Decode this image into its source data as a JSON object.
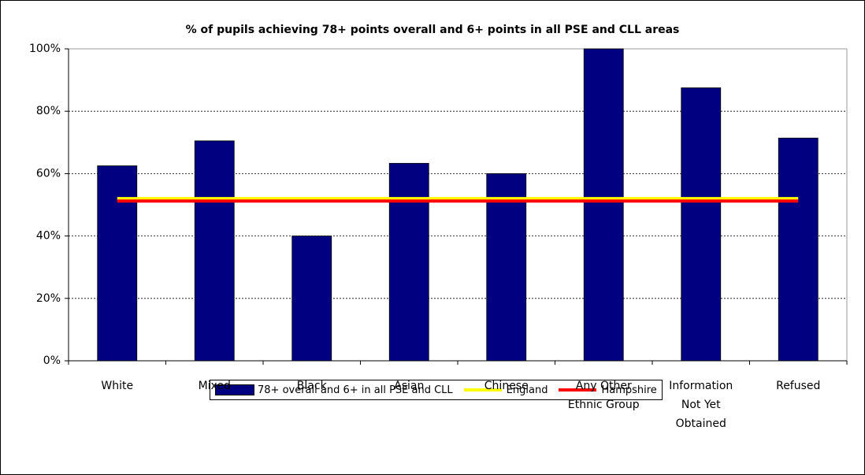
{
  "chart_data": {
    "type": "bar",
    "title": "% of pupils achieving 78+ points overall and 6+ points in all PSE and CLL areas",
    "categories": [
      "White",
      "Mixed",
      "Black",
      "Asian",
      "Chinese",
      "Any Other Ethnic Group",
      "Information Not Yet Obtained",
      "Refused"
    ],
    "series": [
      {
        "name": "78+ overall and 6+ in all PSE and CLL",
        "type": "bar",
        "color": "#000080",
        "values": [
          62.5,
          70.5,
          40,
          63.3,
          60,
          100,
          87.5,
          71.4
        ]
      },
      {
        "name": "England",
        "type": "line",
        "color": "#ffff00",
        "values": [
          52,
          52,
          52,
          52,
          52,
          52,
          52,
          52
        ]
      },
      {
        "name": "Hampshire",
        "type": "line",
        "color": "#ff0000",
        "values": [
          51.2,
          51.2,
          51.2,
          51.2,
          51.2,
          51.2,
          51.2,
          51.2
        ]
      }
    ],
    "ylim": [
      0,
      100
    ],
    "yticks": [
      {
        "value": 0,
        "label": "0%"
      },
      {
        "value": 20,
        "label": "20%"
      },
      {
        "value": 40,
        "label": "40%"
      },
      {
        "value": 60,
        "label": "60%"
      },
      {
        "value": 80,
        "label": "80%"
      },
      {
        "value": 100,
        "label": "100%"
      }
    ],
    "grid": true,
    "legend": "bottom"
  }
}
